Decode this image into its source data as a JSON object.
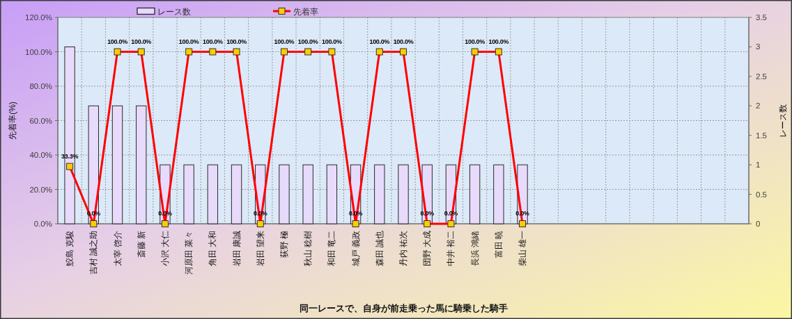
{
  "chart_data": {
    "type": "bar",
    "xlabel": "同一レースで、自身が前走乗った馬に騎乗した騎手",
    "ylabel": "先着率(%)",
    "y2label": "レース数",
    "categories": [
      "鮫島 克駿",
      "吉村 誠之助",
      "太宰 啓介",
      "斎藤 新",
      "小沢 大仁",
      "河原田 菜々",
      "角田 大和",
      "岩田 康誠",
      "岩田 望来",
      "荻野 極",
      "秋山 稔樹",
      "和田 竜二",
      "城戸 義政",
      "森田 誠也",
      "丹内 祐次",
      "団野 大成",
      "中井 裕二",
      "長浜 鴻緒",
      "富田 暁",
      "柴山 雄一",
      null,
      null,
      null,
      null,
      null,
      null,
      null,
      null,
      null
    ],
    "series": [
      {
        "name": "レース数",
        "axis": "y2",
        "color": "#e8dafb",
        "values": [
          3,
          2,
          2,
          2,
          1,
          1,
          1,
          1,
          1,
          1,
          1,
          1,
          1,
          1,
          1,
          1,
          1,
          1,
          1,
          1,
          null,
          null,
          null,
          null,
          null,
          null,
          null,
          null,
          null
        ]
      },
      {
        "name": "先着率",
        "type": "line",
        "color": "#ff0000",
        "values": [
          33.3,
          0,
          100,
          100,
          0,
          100,
          100,
          100,
          0,
          100,
          100,
          100,
          0,
          100,
          100,
          0,
          0,
          100,
          100,
          0,
          null,
          null,
          null,
          null,
          null,
          null,
          null,
          null,
          null
        ],
        "value_labels": [
          "33.3%",
          "0.0%",
          "100.0%",
          "100.0%",
          "0.0%",
          "100.0%",
          "100.0%",
          "100.0%",
          "0.0%",
          "100.0%",
          "100.0%",
          "100.0%",
          "0.0%",
          "100.0%",
          "100.0%",
          "0.0%",
          "0.0%",
          "100.0%",
          "100.0%",
          "0.0%",
          null,
          null,
          null,
          null,
          null,
          null,
          null,
          null,
          null
        ]
      }
    ],
    "ylim": [
      0,
      120
    ],
    "yticks": [
      {
        "value": 0,
        "label": "0.0%"
      },
      {
        "value": 20,
        "label": "20.0%"
      },
      {
        "value": 40,
        "label": "40.0%"
      },
      {
        "value": 60,
        "label": "60.0%"
      },
      {
        "value": 80,
        "label": "80.0%"
      },
      {
        "value": 100,
        "label": "100.0%"
      },
      {
        "value": 120,
        "label": "120.0%"
      }
    ],
    "y2lim": [
      0,
      3.5
    ],
    "y2ticks": [
      0,
      0.5,
      1,
      1.5,
      2,
      2.5,
      3,
      3.5
    ],
    "grid": true,
    "legend": "top",
    "marker": "square",
    "line_style": "solid"
  }
}
